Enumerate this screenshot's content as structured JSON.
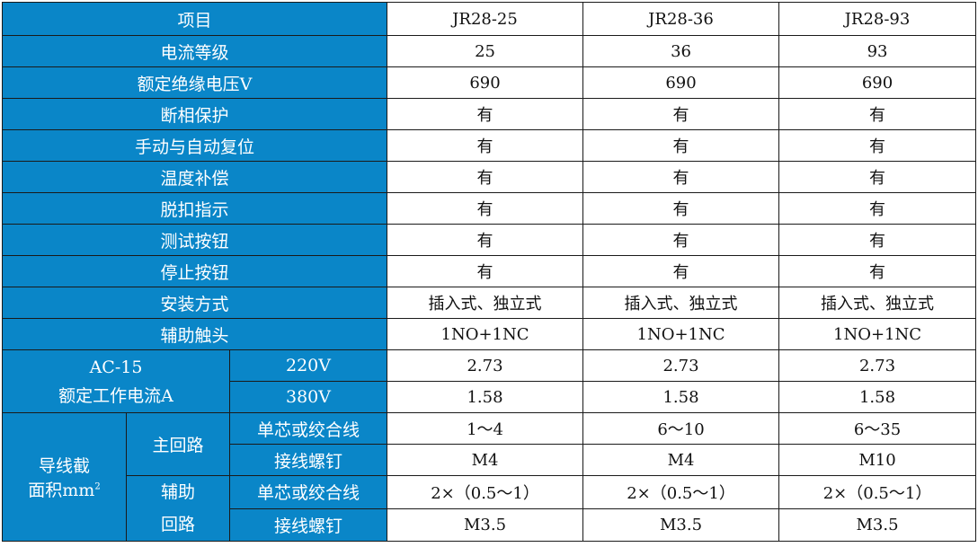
{
  "header": {
    "item": "项目",
    "models": [
      "JR28-25",
      "JR28-36",
      "JR28-93"
    ]
  },
  "rows": [
    {
      "label": "电流等级",
      "values": [
        "25",
        "36",
        "93"
      ]
    },
    {
      "label": "额定绝缘电压V",
      "values": [
        "690",
        "690",
        "690"
      ]
    },
    {
      "label": "断相保护",
      "values": [
        "有",
        "有",
        "有"
      ]
    },
    {
      "label": "手动与自动复位",
      "values": [
        "有",
        "有",
        "有"
      ]
    },
    {
      "label": "温度补偿",
      "values": [
        "有",
        "有",
        "有"
      ]
    },
    {
      "label": "脱扣指示",
      "values": [
        "有",
        "有",
        "有"
      ]
    },
    {
      "label": "测试按钮",
      "values": [
        "有",
        "有",
        "有"
      ]
    },
    {
      "label": "停止按钮",
      "values": [
        "有",
        "有",
        "有"
      ]
    },
    {
      "label": "安装方式",
      "values": [
        "插入式、独立式",
        "插入式、独立式",
        "插入式、独立式"
      ]
    },
    {
      "label": "辅助触头",
      "values": [
        "1NO+1NC",
        "1NO+1NC",
        "1NO+1NC"
      ]
    }
  ],
  "ac15": {
    "label_line1": "AC-15",
    "label_line2": "额定工作电流A",
    "rows": [
      {
        "label": "220V",
        "values": [
          "2.73",
          "2.73",
          "2.73"
        ]
      },
      {
        "label": "380V",
        "values": [
          "1.58",
          "1.58",
          "1.58"
        ]
      }
    ]
  },
  "wire": {
    "label_line1": "导线截",
    "label_line2": "面积mm",
    "label_sup": "2",
    "main": {
      "label": "主回路",
      "rows": [
        {
          "label": "单芯或绞合线",
          "values": [
            "1～4",
            "6～10",
            "6～35"
          ]
        },
        {
          "label": "接线螺钉",
          "values": [
            "M4",
            "M4",
            "M10"
          ]
        }
      ]
    },
    "aux": {
      "label_line1": "辅助",
      "label_line2": "回路",
      "rows": [
        {
          "label": "单芯或绞合线",
          "values": [
            "2×（0.5～1）",
            "2×（0.5～1）",
            "2×（0.5～1）"
          ]
        },
        {
          "label": "接线螺钉",
          "values": [
            "M3.5",
            "M3.5",
            "M3.5"
          ]
        }
      ]
    }
  },
  "colors": {
    "header_bg": "#0a86c8",
    "header_text": "#ffffff",
    "border": "#1a1a1a"
  }
}
